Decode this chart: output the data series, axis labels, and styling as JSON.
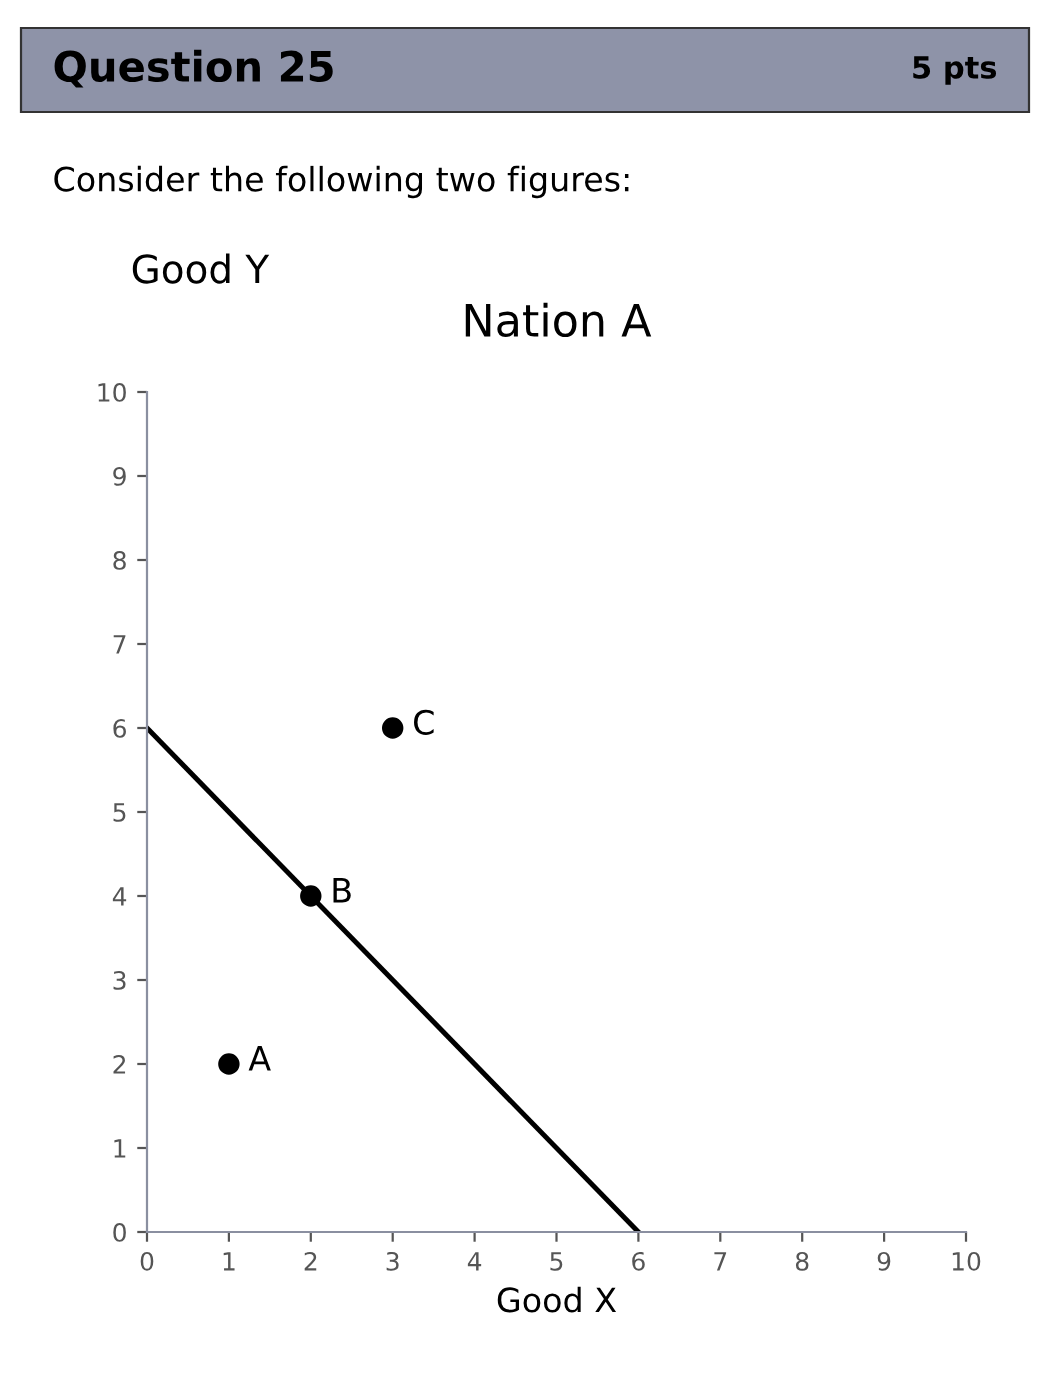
{
  "chart_data": {
    "type": "scatter",
    "title": "Nation A",
    "xlabel": "Good X",
    "ylabel": "Good Y",
    "annotations": [
      "Question 25",
      "5 pts",
      "Consider the following two figures:"
    ],
    "xlim": [
      0,
      10
    ],
    "ylim": [
      0,
      10
    ],
    "xticks": [
      0,
      1,
      2,
      3,
      4,
      5,
      6,
      7,
      8,
      9,
      10
    ],
    "yticks": [
      0,
      1,
      2,
      3,
      4,
      5,
      6,
      7,
      8,
      9,
      10
    ],
    "grid": false,
    "legend": false,
    "series": [
      {
        "type": "line",
        "x": [
          0,
          6
        ],
        "values": [
          6,
          0
        ],
        "color": "#000000"
      },
      {
        "name": "A",
        "x": [
          1
        ],
        "values": [
          2
        ],
        "color": "#000000",
        "marker": "circle"
      },
      {
        "name": "B",
        "x": [
          2
        ],
        "values": [
          4
        ],
        "color": "#000000",
        "marker": "circle"
      },
      {
        "name": "C",
        "x": [
          3
        ],
        "values": [
          6
        ],
        "color": "#000000",
        "marker": "circle"
      }
    ]
  }
}
